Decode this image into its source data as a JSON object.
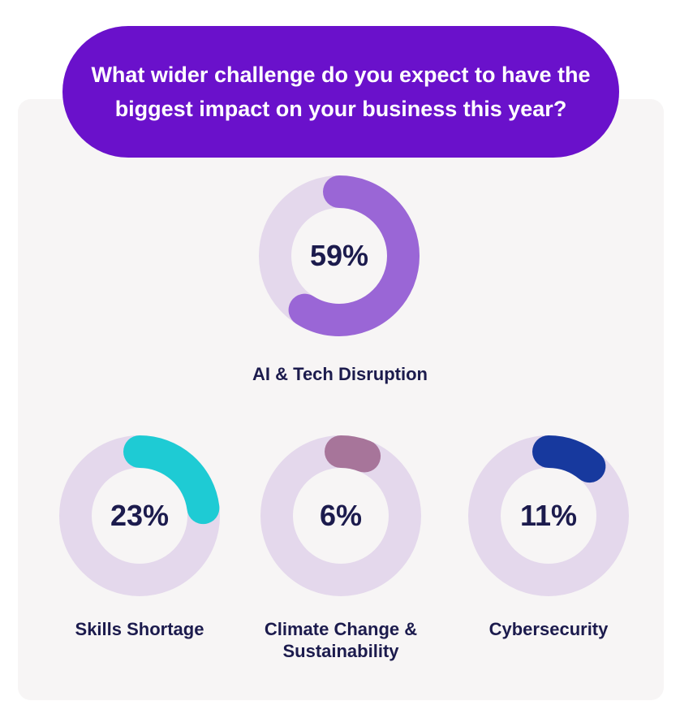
{
  "title": "What wider challenge do you expect to have the biggest impact on your business this year?",
  "colors": {
    "title_bg": "#6a11cb",
    "track": "#e4d8ec",
    "text": "#1c1b4d"
  },
  "chart_data": {
    "type": "donut",
    "title": "What wider challenge do you expect to have the biggest impact on your business this year?",
    "unit": "%",
    "items": [
      {
        "label": "AI & Tech Disruption",
        "value": 59,
        "display": "59%",
        "color": "#9a66d6"
      },
      {
        "label": "Skills Shortage",
        "value": 23,
        "display": "23%",
        "color": "#1ecbd4"
      },
      {
        "label": "Climate Change & Sustainability",
        "value": 6,
        "display": "6%",
        "color": "#a7759a"
      },
      {
        "label": "Cybersecurity",
        "value": 11,
        "display": "11%",
        "color": "#17399e"
      }
    ]
  }
}
